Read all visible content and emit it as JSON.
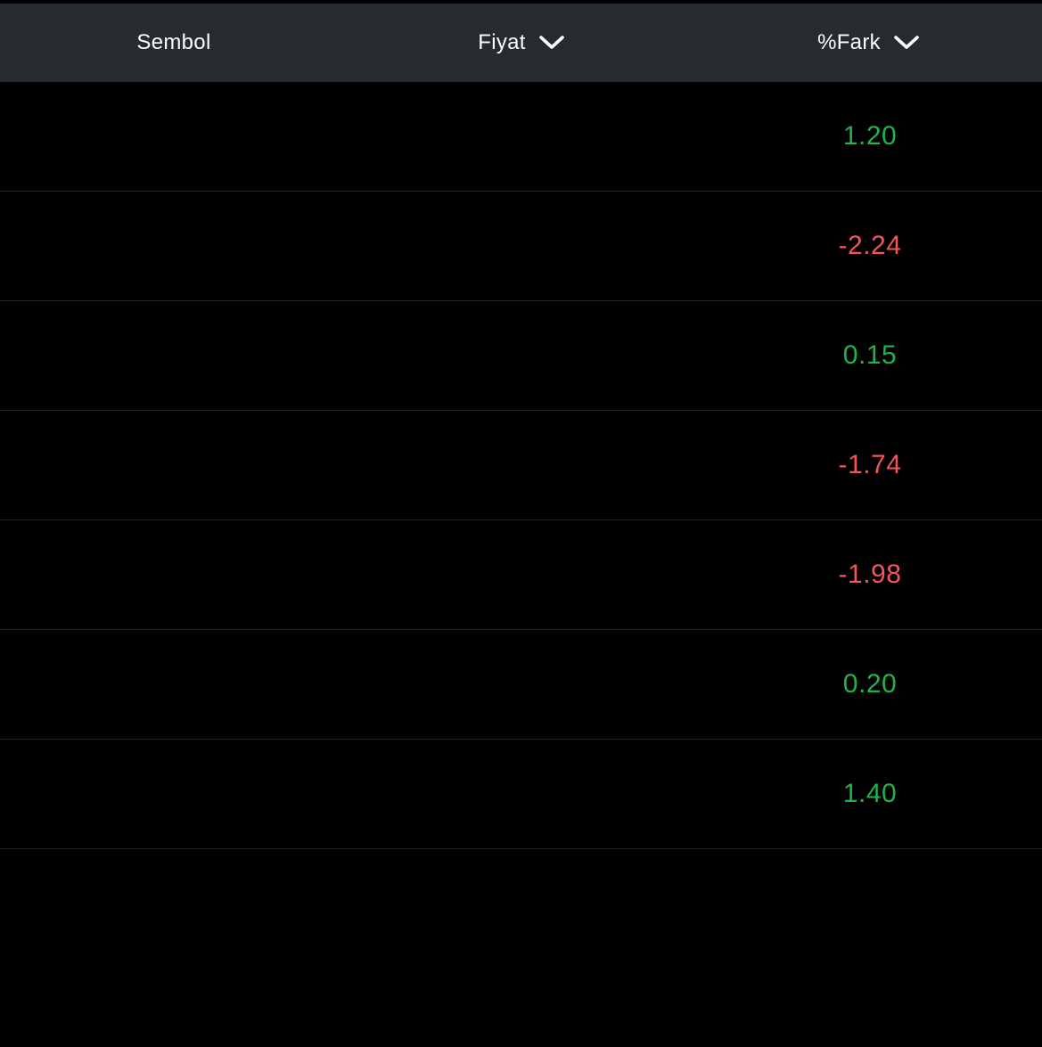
{
  "header": {
    "symbol_label": "Sembol",
    "price_label": "Fiyat",
    "change_label": "%Fark",
    "sort_icon": "chevron-down-icon"
  },
  "colors": {
    "header_bg": "#272a2e",
    "row_bg": "#000000",
    "positive": "#22b24c",
    "negative": "#f0555a",
    "divider": "#1f2124"
  },
  "rows": [
    {
      "change": "1.20",
      "trend": "positive"
    },
    {
      "change": "-2.24",
      "trend": "negative"
    },
    {
      "change": "0.15",
      "trend": "positive"
    },
    {
      "change": "-1.74",
      "trend": "negative"
    },
    {
      "change": "-1.98",
      "trend": "negative"
    },
    {
      "change": "0.20",
      "trend": "positive"
    },
    {
      "change": "1.40",
      "trend": "positive"
    }
  ]
}
